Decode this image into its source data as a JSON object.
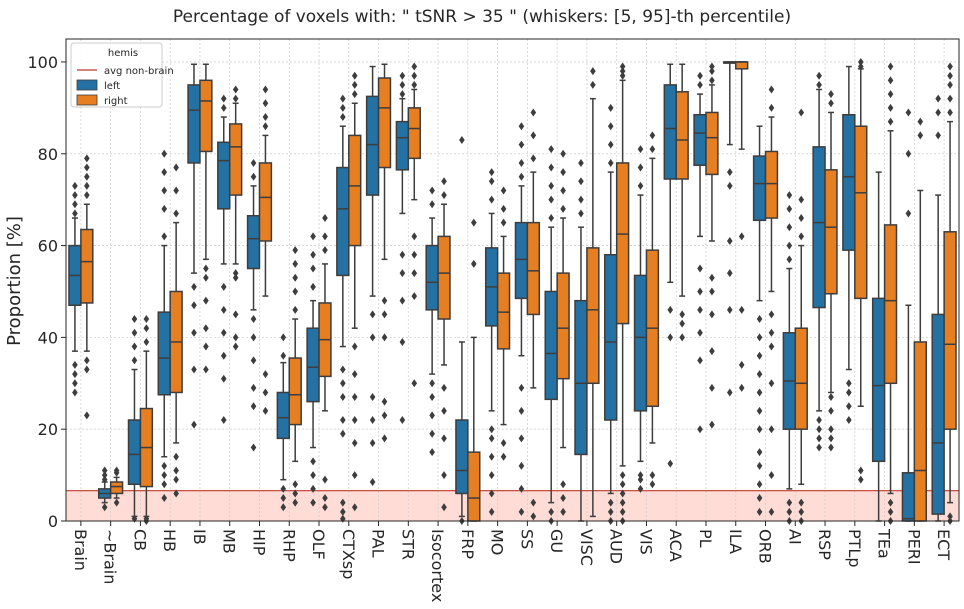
{
  "chart_data": {
    "type": "box",
    "title": "Percentage of voxels with:  \" tSNR  >  35 \"  (whiskers: [5, 95]-th percentile)",
    "xlabel": "",
    "ylabel": "Proportion [%]",
    "ylim": [
      0,
      105
    ],
    "yticks": [
      0,
      20,
      40,
      60,
      80,
      100
    ],
    "grid": true,
    "legend": {
      "title": "hemis",
      "position": "top-left",
      "entries": [
        {
          "label": "avg non-brain",
          "kind": "line",
          "color": "#c0392b"
        },
        {
          "label": "left",
          "kind": "patch",
          "color": "#2471a3"
        },
        {
          "label": "right",
          "kind": "patch",
          "color": "#e67e22"
        }
      ]
    },
    "reference_band": {
      "label": "avg non-brain",
      "value": 6.6,
      "color": "#c0392b",
      "fill": "#ffdcd6"
    },
    "categories": [
      "Brain",
      "~Brain",
      "CB",
      "HB",
      "IB",
      "MB",
      "HIP",
      "RHP",
      "OLF",
      "CTXsp",
      "PAL",
      "STR",
      "Isocortex",
      "FRP",
      "MO",
      "SS",
      "GU",
      "VISC",
      "AUD",
      "VIS",
      "ACA",
      "PL",
      "ILA",
      "ORB",
      "AI",
      "RSP",
      "PTLp",
      "TEa",
      "PERI",
      "ECT"
    ],
    "series": [
      {
        "name": "left",
        "color": "#2471a3",
        "boxes": [
          {
            "wlo": 37,
            "q1": 47,
            "med": 53.5,
            "q3": 60,
            "whi": 66,
            "out": [
              28,
              30,
              32,
              34,
              67,
              69,
              71,
              73
            ]
          },
          {
            "wlo": 4,
            "q1": 5,
            "med": 6,
            "q3": 7,
            "whi": 8.5,
            "out": [
              3,
              9,
              10,
              11
            ]
          },
          {
            "wlo": 1,
            "q1": 8,
            "med": 14.5,
            "q3": 22,
            "whi": 33,
            "out": [
              0.5,
              35,
              38,
              41,
              44
            ]
          },
          {
            "wlo": 14,
            "q1": 27.5,
            "med": 35.5,
            "q3": 45.5,
            "whi": 60,
            "out": [
              5,
              8,
              10,
              12,
              62,
              68,
              72,
              76,
              80
            ]
          },
          {
            "wlo": 54,
            "q1": 78,
            "med": 89.5,
            "q3": 95,
            "whi": 99.5,
            "out": [
              21,
              33,
              41,
              47,
              51
            ]
          },
          {
            "wlo": 56,
            "q1": 68,
            "med": 78.5,
            "q3": 82.5,
            "whi": 88,
            "out": [
              22,
              31,
              36,
              41,
              46,
              51,
              90,
              92
            ]
          },
          {
            "wlo": 46,
            "q1": 55,
            "med": 61.5,
            "q3": 66.5,
            "whi": 73,
            "out": [
              16,
              25,
              29,
              35,
              40,
              44,
              75,
              78
            ]
          },
          {
            "wlo": 9,
            "q1": 18,
            "med": 22.5,
            "q3": 28,
            "whi": 34.5,
            "out": [
              3,
              5,
              7,
              36,
              40
            ]
          },
          {
            "wlo": 16,
            "q1": 26,
            "med": 33.5,
            "q3": 42,
            "whi": 48,
            "out": [
              4,
              7,
              10,
              13,
              51,
              55,
              58,
              62
            ]
          },
          {
            "wlo": 38,
            "q1": 53.5,
            "med": 68,
            "q3": 77,
            "whi": 86,
            "out": [
              0.5,
              2,
              4,
              19,
              22,
              27,
              30,
              33,
              88,
              90,
              92
            ]
          },
          {
            "wlo": 49,
            "q1": 71,
            "med": 82,
            "q3": 92.5,
            "whi": 99,
            "out": [
              8.5,
              17,
              22,
              27,
              40,
              45
            ]
          },
          {
            "wlo": 67,
            "q1": 76.5,
            "med": 83.5,
            "q3": 87,
            "whi": 92,
            "out": [
              22,
              39,
              48,
              54,
              58,
              93,
              95,
              97
            ]
          },
          {
            "wlo": 32,
            "q1": 46,
            "med": 52,
            "q3": 60,
            "whi": 66,
            "out": [
              15,
              19,
              23,
              27,
              30,
              69,
              72
            ]
          },
          {
            "wlo": 1,
            "q1": 6,
            "med": 11,
            "q3": 22,
            "whi": 39,
            "out": [
              0,
              83
            ]
          },
          {
            "wlo": 24,
            "q1": 42.5,
            "med": 51,
            "q3": 59.5,
            "whi": 67,
            "out": [
              2,
              6,
              10,
              14,
              18,
              20,
              70,
              74,
              76
            ]
          },
          {
            "wlo": 36,
            "q1": 48.5,
            "med": 57,
            "q3": 65,
            "whi": 73,
            "out": [
              2,
              7,
              12,
              18,
              24,
              29,
              75,
              78,
              82,
              86
            ]
          },
          {
            "wlo": 4,
            "q1": 26.5,
            "med": 36.5,
            "q3": 50,
            "whi": 64,
            "out": [
              0,
              2,
              66,
              70,
              73,
              77,
              81
            ]
          },
          {
            "wlo": 0,
            "q1": 14.5,
            "med": 30,
            "q3": 48,
            "whi": 64,
            "out": [
              67,
              70,
              74,
              78
            ]
          },
          {
            "wlo": 6,
            "q1": 22,
            "med": 39,
            "q3": 58,
            "whi": 76,
            "out": [
              0,
              2,
              4,
              78,
              82,
              86,
              90
            ]
          },
          {
            "wlo": 13,
            "q1": 24,
            "med": 40,
            "q3": 53.5,
            "whi": 71,
            "out": [
              7,
              9,
              10,
              73,
              77,
              81
            ]
          },
          {
            "wlo": 52,
            "q1": 74.5,
            "med": 85.5,
            "q3": 95,
            "whi": 99.5,
            "out": [
              12.5,
              40,
              46
            ]
          },
          {
            "wlo": 62,
            "q1": 77.5,
            "med": 84.5,
            "q3": 88.5,
            "whi": 93,
            "out": [
              20,
              35,
              41,
              46,
              50,
              55,
              95,
              97
            ]
          },
          {
            "wlo": 82,
            "q1": 100,
            "med": 100,
            "q3": 100,
            "whi": 100,
            "out": [
              28,
              46,
              54,
              61,
              73,
              76
            ]
          },
          {
            "wlo": 48,
            "q1": 65.5,
            "med": 73.5,
            "q3": 79.5,
            "whi": 86,
            "out": [
              2,
              5,
              8,
              12,
              15,
              20,
              24,
              28,
              32,
              36,
              40,
              44
            ]
          },
          {
            "wlo": 7,
            "q1": 20,
            "med": 30.5,
            "q3": 41,
            "whi": 55,
            "out": [
              0,
              2,
              4,
              57,
              60,
              64,
              68,
              71
            ]
          },
          {
            "wlo": 24,
            "q1": 46.5,
            "med": 65,
            "q3": 81.5,
            "whi": 94,
            "out": [
              16,
              18,
              20,
              22,
              95,
              97
            ]
          },
          {
            "wlo": 33,
            "q1": 59,
            "med": 75,
            "q3": 88.5,
            "whi": 99,
            "out": [
              22,
              25,
              28,
              30
            ]
          },
          {
            "wlo": 0,
            "q1": 13,
            "med": 29.5,
            "q3": 48.5,
            "whi": 76,
            "out": []
          },
          {
            "wlo": 0,
            "q1": 0,
            "med": 0.5,
            "q3": 10.5,
            "whi": 47,
            "out": [
              67,
              80,
              89
            ]
          },
          {
            "wlo": 0,
            "q1": 1.5,
            "med": 17,
            "q3": 45,
            "whi": 71,
            "out": [
              84,
              89,
              92
            ]
          }
        ]
      },
      {
        "name": "right",
        "color": "#e67e22",
        "boxes": [
          {
            "wlo": 37,
            "q1": 47.5,
            "med": 56.5,
            "q3": 63.5,
            "whi": 69,
            "out": [
              23,
              33,
              35,
              71,
              73,
              75,
              77,
              79
            ]
          },
          {
            "wlo": 5,
            "q1": 6,
            "med": 7.5,
            "q3": 8.5,
            "whi": 9.5,
            "out": [
              4,
              10.5,
              11
            ]
          },
          {
            "wlo": 1,
            "q1": 7.5,
            "med": 16,
            "q3": 24.5,
            "whi": 37,
            "out": [
              0,
              0.5,
              39,
              42,
              44
            ]
          },
          {
            "wlo": 17,
            "q1": 28,
            "med": 39,
            "q3": 50,
            "whi": 65,
            "out": [
              6,
              9,
              11,
              14,
              67,
              72,
              77
            ]
          },
          {
            "wlo": 57,
            "q1": 80.5,
            "med": 91.5,
            "q3": 96,
            "whi": 99.5,
            "out": [
              33,
              38,
              42,
              48,
              53,
              55
            ]
          },
          {
            "wlo": 56,
            "q1": 71,
            "med": 81.5,
            "q3": 86.5,
            "whi": 91,
            "out": [
              38,
              40,
              45,
              53,
              54,
              92,
              94
            ]
          },
          {
            "wlo": 49,
            "q1": 61,
            "med": 70.5,
            "q3": 78,
            "whi": 84,
            "out": [
              24,
              28,
              32,
              86,
              88,
              91,
              94
            ]
          },
          {
            "wlo": 13,
            "q1": 21,
            "med": 27.5,
            "q3": 35.5,
            "whi": 44,
            "out": [
              4,
              6,
              8,
              46,
              50,
              53,
              56,
              59
            ]
          },
          {
            "wlo": 24,
            "q1": 31.5,
            "med": 39.5,
            "q3": 47.5,
            "whi": 56,
            "out": [
              3,
              5,
              9,
              59,
              62,
              66
            ]
          },
          {
            "wlo": 42,
            "q1": 60,
            "med": 73,
            "q3": 84,
            "whi": 91,
            "out": [
              3,
              10,
              17,
              22,
              27,
              32,
              38,
              93,
              95,
              97
            ]
          },
          {
            "wlo": 57,
            "q1": 77,
            "med": 90,
            "q3": 96.5,
            "whi": 99.5,
            "out": [
              18,
              23,
              26,
              40,
              45,
              48
            ]
          },
          {
            "wlo": 70,
            "q1": 79,
            "med": 85.5,
            "q3": 90,
            "whi": 94,
            "out": [
              30,
              49,
              54,
              58,
              62,
              95,
              97,
              99
            ]
          },
          {
            "wlo": 34,
            "q1": 44,
            "med": 54,
            "q3": 62,
            "whi": 69,
            "out": [
              3,
              10,
              18,
              24,
              29,
              71,
              74
            ]
          },
          {
            "wlo": 0,
            "q1": 0,
            "med": 5,
            "q3": 15,
            "whi": 40,
            "out": [
              56,
              65
            ]
          },
          {
            "wlo": 21,
            "q1": 37.5,
            "med": 45.5,
            "q3": 54,
            "whi": 62,
            "out": [
              14,
              17,
              65,
              68,
              72
            ]
          },
          {
            "wlo": 29,
            "q1": 45,
            "med": 54.5,
            "q3": 65,
            "whi": 76,
            "out": [
              1,
              4,
              79,
              84,
              89
            ]
          },
          {
            "wlo": 16,
            "q1": 31,
            "med": 42,
            "q3": 54,
            "whi": 66,
            "out": [
              2,
              5,
              8,
              68,
              72,
              76,
              80
            ]
          },
          {
            "wlo": 1,
            "q1": 30,
            "med": 46,
            "q3": 59.5,
            "whi": 92,
            "out": [
              95,
              98
            ]
          },
          {
            "wlo": 12,
            "q1": 43,
            "med": 62.5,
            "q3": 78,
            "whi": 96,
            "out": [
              0,
              2,
              4,
              6,
              8,
              10,
              97,
              98,
              99
            ]
          },
          {
            "wlo": 17,
            "q1": 25,
            "med": 42,
            "q3": 59,
            "whi": 79,
            "out": [
              8,
              10,
              81,
              84
            ]
          },
          {
            "wlo": 49,
            "q1": 74.5,
            "med": 83,
            "q3": 93.5,
            "whi": 99.5,
            "out": [
              40,
              43,
              45
            ]
          },
          {
            "wlo": 61,
            "q1": 75.5,
            "med": 83.5,
            "q3": 89,
            "whi": 95,
            "out": [
              21,
              29,
              37,
              45,
              50,
              53,
              96,
              98,
              99
            ]
          },
          {
            "wlo": 81,
            "q1": 98.5,
            "med": 100,
            "q3": 100,
            "whi": 100,
            "out": [
              29,
              34,
              46,
              62
            ]
          },
          {
            "wlo": 50,
            "q1": 66,
            "med": 73.5,
            "q3": 80.5,
            "whi": 88,
            "out": [
              2,
              10,
              20,
              30,
              38,
              41,
              45,
              90,
              94
            ]
          },
          {
            "wlo": 8,
            "q1": 20,
            "med": 30,
            "q3": 42,
            "whi": 60,
            "out": [
              0,
              2,
              4,
              62,
              66,
              70,
              89
            ]
          },
          {
            "wlo": 28,
            "q1": 49.5,
            "med": 64,
            "q3": 76.5,
            "whi": 89,
            "out": [
              16,
              18,
              20,
              24,
              27,
              91,
              93
            ]
          },
          {
            "wlo": 25,
            "q1": 48.5,
            "med": 71.5,
            "q3": 86,
            "whi": 98.5,
            "out": [
              9,
              11,
              99,
              100
            ]
          },
          {
            "wlo": 6,
            "q1": 30,
            "med": 48,
            "q3": 64.5,
            "whi": 85,
            "out": [
              0,
              2,
              4,
              87,
              90,
              93,
              96,
              99
            ]
          },
          {
            "wlo": 0,
            "q1": 0,
            "med": 11,
            "q3": 39,
            "whi": 72,
            "out": [
              84,
              87
            ]
          },
          {
            "wlo": 4,
            "q1": 20,
            "med": 38.5,
            "q3": 63,
            "whi": 87,
            "out": [
              0,
              1,
              89,
              92,
              95,
              97,
              99
            ]
          }
        ]
      }
    ]
  }
}
